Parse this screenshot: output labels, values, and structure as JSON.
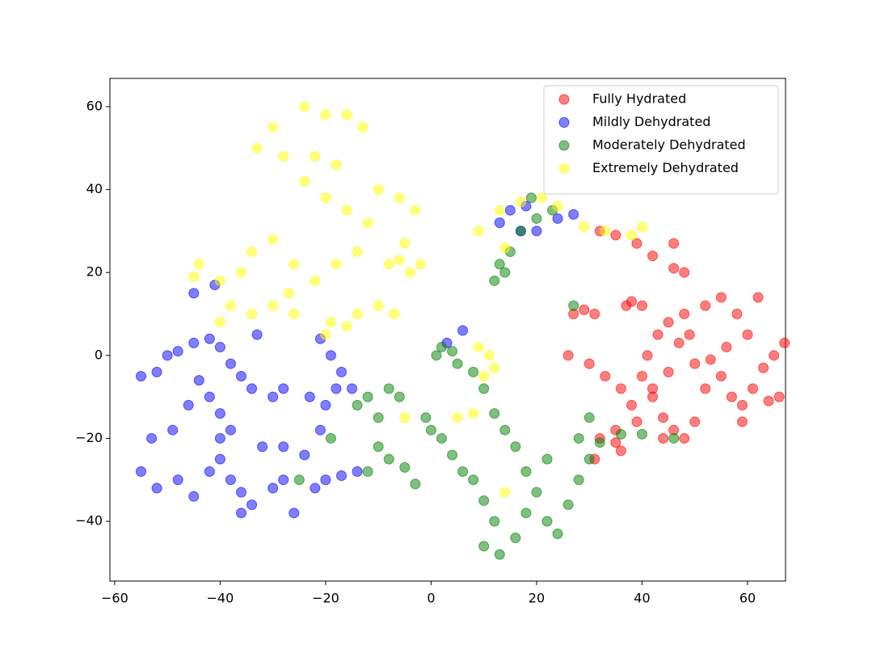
{
  "chart_data": {
    "type": "scatter",
    "xlim": [
      -60.9,
      67.2
    ],
    "ylim": [
      -54.4,
      66.8
    ],
    "xticks": [
      {
        "value": -60,
        "label": "−60"
      },
      {
        "value": -40,
        "label": "−40"
      },
      {
        "value": -20,
        "label": "−20"
      },
      0,
      20,
      40,
      60
    ],
    "yticks": [
      {
        "value": -40,
        "label": "−40"
      },
      {
        "value": -20,
        "label": "−20"
      },
      0,
      20,
      40,
      60
    ],
    "legend": "upper right",
    "series": [
      {
        "name": "Fully Hydrated",
        "color": "red",
        "x": [
          27,
          29,
          31,
          26,
          30,
          33,
          36,
          38,
          40,
          42,
          44,
          46,
          48,
          41,
          43,
          45,
          47,
          50,
          52,
          55,
          57,
          59,
          61,
          63,
          65,
          67,
          60,
          58,
          55,
          52,
          48,
          40,
          37,
          35,
          32,
          36,
          39,
          44,
          50,
          59,
          62,
          46,
          46,
          48,
          42,
          39,
          35,
          32,
          38,
          64,
          53,
          49,
          45,
          42,
          56,
          66,
          31,
          35
        ],
        "y": [
          10,
          11,
          10,
          0,
          -2,
          -5,
          -8,
          -12,
          -5,
          -10,
          -15,
          -18,
          -20,
          0,
          5,
          8,
          3,
          -2,
          -8,
          -5,
          -10,
          -12,
          -8,
          -3,
          0,
          3,
          5,
          10,
          14,
          12,
          10,
          12,
          12,
          -18,
          -20,
          -23,
          -16,
          -20,
          -16,
          -16,
          14,
          27,
          21,
          20,
          24,
          27,
          29,
          30,
          13,
          -11,
          -1,
          5,
          -4,
          -8,
          2,
          -10,
          -25,
          -21
        ]
      },
      {
        "name": "Mildly Dehydrated",
        "color": "blue",
        "x": [
          -55,
          -52,
          -50,
          -48,
          -45,
          -42,
          -40,
          -38,
          -36,
          -34,
          -30,
          -28,
          -44,
          -42,
          -40,
          -46,
          -49,
          -53,
          -55,
          -52,
          -48,
          -45,
          -42,
          -40,
          -38,
          -36,
          -34,
          -36,
          -30,
          -28,
          -26,
          -32,
          -28,
          -24,
          -38,
          -40,
          -20,
          -17,
          -14,
          -22,
          -21,
          -20,
          -18,
          -17,
          -19,
          -21,
          -15,
          -23,
          -45,
          -41,
          -33,
          13,
          15,
          17,
          20,
          24,
          27,
          18,
          6,
          3
        ],
        "y": [
          -5,
          -4,
          0,
          1,
          3,
          4,
          2,
          -2,
          -5,
          -8,
          -10,
          -8,
          -6,
          -10,
          -14,
          -12,
          -18,
          -20,
          -28,
          -32,
          -30,
          -34,
          -28,
          -25,
          -30,
          -33,
          -36,
          -38,
          -32,
          -30,
          -38,
          -22,
          -22,
          -24,
          -18,
          -20,
          -30,
          -29,
          -28,
          -32,
          -18,
          -12,
          -8,
          -4,
          0,
          4,
          -8,
          -10,
          15,
          17,
          5,
          32,
          35,
          30,
          30,
          33,
          34,
          36,
          6,
          3
        ]
      },
      {
        "name": "Moderately Dehydrated",
        "color": "green",
        "x": [
          -14,
          -12,
          -10,
          -8,
          -6,
          -10,
          -12,
          -8,
          -5,
          -3,
          0,
          2,
          4,
          6,
          8,
          10,
          12,
          10,
          13,
          16,
          18,
          20,
          22,
          24,
          26,
          28,
          30,
          22,
          18,
          16,
          14,
          12,
          10,
          8,
          5,
          1,
          2,
          4,
          -1,
          28,
          32,
          36,
          40,
          46,
          27,
          12,
          13,
          15,
          17,
          20,
          23,
          19,
          14,
          30,
          -19,
          -25
        ],
        "y": [
          -12,
          -10,
          -15,
          -8,
          -10,
          -22,
          -28,
          -25,
          -27,
          -31,
          -18,
          -20,
          -24,
          -28,
          -30,
          -35,
          -40,
          -46,
          -48,
          -44,
          -38,
          -33,
          -40,
          -43,
          -36,
          -30,
          -25,
          -25,
          -28,
          -22,
          -18,
          -14,
          -8,
          -4,
          -2,
          0,
          2,
          1,
          -15,
          -20,
          -21,
          -19,
          -19,
          -20,
          12,
          18,
          22,
          25,
          30,
          33,
          35,
          38,
          20,
          -15,
          -20,
          -30
        ]
      },
      {
        "name": "Extremely Dehydrated",
        "color": "yellow",
        "x": [
          -24,
          -20,
          -16,
          -13,
          -30,
          -33,
          -28,
          -22,
          -18,
          -24,
          -20,
          -16,
          -12,
          -10,
          -6,
          -3,
          -5,
          -2,
          -8,
          -4,
          -14,
          -18,
          -22,
          -26,
          -30,
          -34,
          -36,
          -40,
          -44,
          -45,
          -38,
          -34,
          -30,
          -27,
          -40,
          -14,
          -10,
          -16,
          -20,
          -19,
          -7,
          10,
          12,
          11,
          9,
          8,
          5,
          -5,
          13,
          17,
          21,
          24,
          29,
          33,
          38,
          40,
          9,
          14,
          14,
          -6,
          -26
        ],
        "y": [
          60,
          58,
          58,
          55,
          55,
          50,
          48,
          48,
          46,
          42,
          38,
          35,
          32,
          40,
          38,
          35,
          27,
          22,
          22,
          20,
          25,
          22,
          18,
          22,
          28,
          25,
          20,
          18,
          22,
          19,
          12,
          10,
          12,
          15,
          8,
          10,
          12,
          7,
          5,
          8,
          10,
          -5,
          -3,
          0,
          2,
          -14,
          -15,
          -15,
          35,
          37,
          38,
          36,
          31,
          30,
          29,
          31,
          30,
          26,
          -33,
          23,
          10
        ]
      }
    ]
  }
}
